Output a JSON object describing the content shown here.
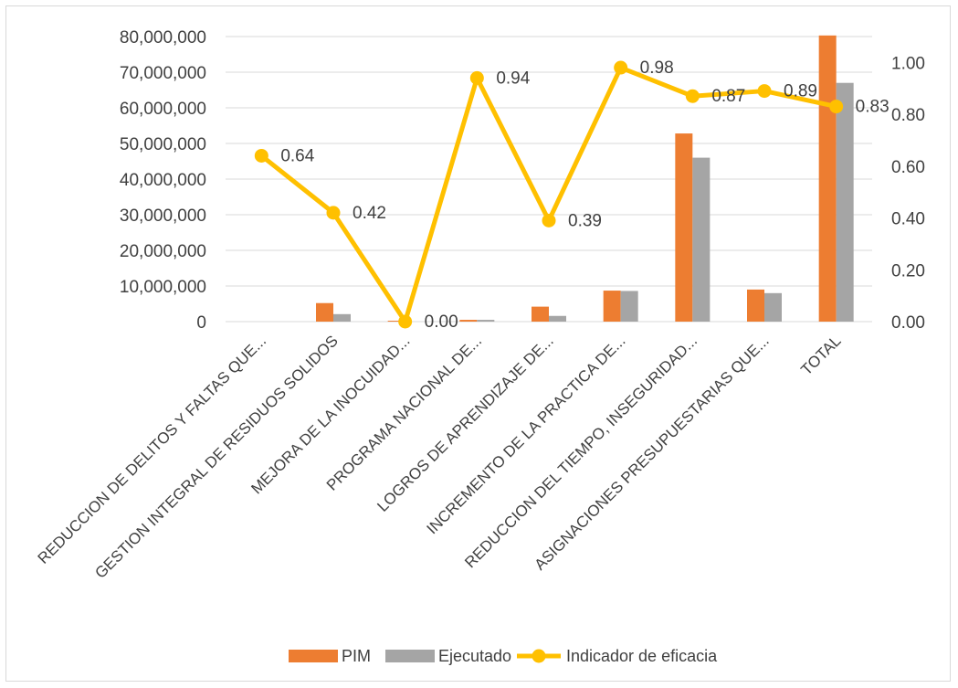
{
  "colors": {
    "pim": "#ed7d31",
    "ejecutado": "#a5a5a5",
    "indicador": "#ffc000",
    "grid": "#d9d9d9",
    "text": "#404040"
  },
  "chart_data": {
    "type": "bar",
    "title": "",
    "xlabel": "",
    "ylabel": "",
    "categories": [
      "REDUCCION DE DELITOS Y FALTAS QUE...",
      "GESTION INTEGRAL DE RESIDUOS SOLIDOS",
      "MEJORA DE LA INOCUIDAD...",
      "PROGRAMA NACIONAL DE...",
      "LOGROS DE APRENDIZAJE DE...",
      "INCREMENTO DE LA PRACTICA DE...",
      "REDUCCION DEL TIEMPO, INSEGURIDAD...",
      "ASIGNACIONES PRESUPUESTARIAS QUE...",
      "TOTAL"
    ],
    "series": [
      {
        "name": "PIM",
        "type": "bar",
        "axis": "left",
        "values": [
          0,
          5200000,
          250000,
          500000,
          4200000,
          8700000,
          52800000,
          9000000,
          80300000
        ]
      },
      {
        "name": "Ejecutado",
        "type": "bar",
        "axis": "left",
        "values": [
          0,
          2100000,
          0,
          500000,
          1600000,
          8600000,
          46000000,
          8000000,
          67000000
        ]
      },
      {
        "name": "Indicador de eficacia",
        "type": "line",
        "axis": "right",
        "values": [
          0.64,
          0.42,
          0.0,
          0.94,
          0.39,
          0.98,
          0.87,
          0.89,
          0.83
        ],
        "labels": [
          "0.64",
          "0.42",
          "0.00",
          "0.94",
          "0.39",
          "0.98",
          "0.87",
          "0.89",
          "0.83"
        ]
      }
    ],
    "ylim": [
      0,
      80000000
    ],
    "yticks": [
      "0",
      "10,000,000",
      "20,000,000",
      "30,000,000",
      "40,000,000",
      "50,000,000",
      "60,000,000",
      "70,000,000",
      "80,000,000"
    ],
    "y2lim": [
      0,
      1.1
    ],
    "y2ticks": [
      "0.00",
      "0.20",
      "0.40",
      "0.60",
      "0.80",
      "1.00"
    ],
    "grid": true,
    "legend_position": "bottom"
  }
}
